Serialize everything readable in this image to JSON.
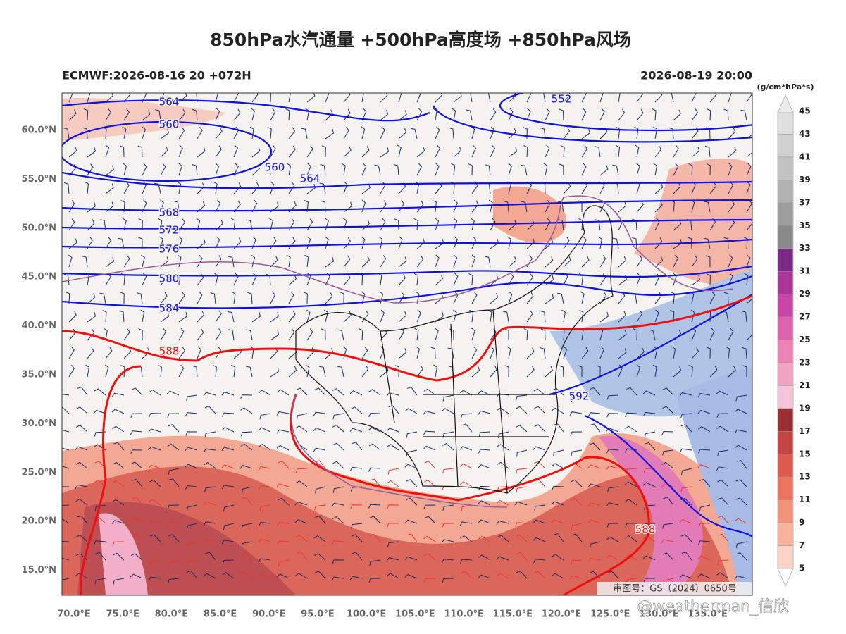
{
  "title": "850hPa水汽通量 +500hPa高度场 +850hPa风场",
  "left_label": "ECMWF:2026-08-16 20 +072H",
  "right_label": "2026-08-19 20:00",
  "colorbar": {
    "unit": "(g/cm*hPa*s)",
    "levels": [
      5,
      7,
      9,
      11,
      13,
      15,
      17,
      19,
      21,
      23,
      25,
      27,
      29,
      31,
      33,
      35,
      37,
      39,
      41,
      43,
      45
    ],
    "colors": [
      "#fbd3c6",
      "#f8b39e",
      "#f3937a",
      "#ec7460",
      "#dc5a4e",
      "#c54545",
      "#9a3036",
      "#f7c3d6",
      "#f2a3c2",
      "#ec83b4",
      "#de63ae",
      "#c946a6",
      "#a93698",
      "#7b2a88",
      "#8a8a8a",
      "#9e9e9e",
      "#b1b1b1",
      "#c2c2c2",
      "#d1d1d1",
      "#dfdfdf"
    ]
  },
  "map": {
    "lat_labels": [
      "60.0°N",
      "55.0°N",
      "50.0°N",
      "45.0°N",
      "40.0°N",
      "35.0°N",
      "30.0°N",
      "25.0°N",
      "20.0°N",
      "15.0°N"
    ],
    "lon_labels": [
      "70.0°E",
      "75.0°E",
      "80.0°E",
      "85.0°E",
      "90.0°E",
      "95.0°E",
      "100.0°E",
      "105.0°E",
      "110.0°E",
      "115.0°E",
      "120.0°E",
      "125.0°E",
      "130.0°E",
      "135.0°E"
    ],
    "contour_labels": [
      "564",
      "560",
      "560",
      "564",
      "552",
      "568",
      "572",
      "576",
      "580",
      "584",
      "588",
      "592",
      "588"
    ],
    "review_number": "审图号：GS（2024）0650号"
  },
  "watermark": "@weatherman_信欣"
}
